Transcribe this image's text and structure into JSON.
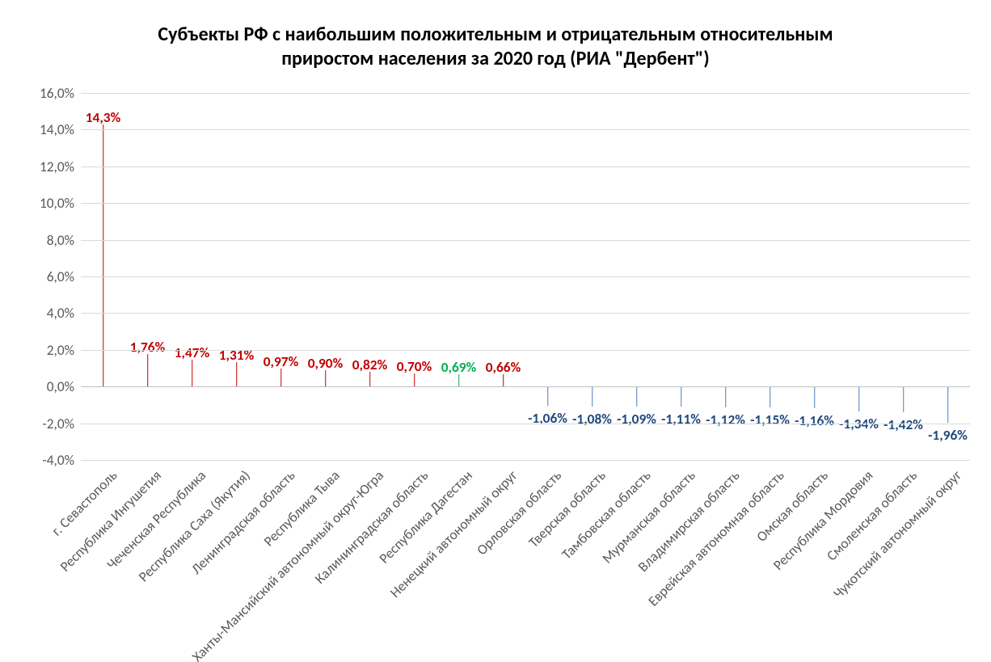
{
  "chart": {
    "type": "bar",
    "title": "Субъекты РФ с наибольшим положительным и отрицательным относительным\nприростом населения за 2020 год (РИА \"Дербент\")",
    "title_fontsize_pt": 18,
    "title_color": "#000000",
    "background_color": "#ffffff",
    "grid_color": "#d9d9d9",
    "axis_label_color": "#595959",
    "y_axis": {
      "min": -4.0,
      "max": 16.0,
      "tick_step": 2.0,
      "ticks": [
        -4.0,
        -2.0,
        0.0,
        2.0,
        4.0,
        6.0,
        8.0,
        10.0,
        12.0,
        14.0,
        16.0
      ],
      "tick_format_suffix": "%",
      "tick_decimal_places": 1,
      "tick_decimal_separator": ",",
      "tick_fontsize_pt": 13
    },
    "bar_width_ratio": 0.55,
    "data_label_fontsize_pt": 13,
    "x_label_fontsize_pt": 13,
    "x_label_rotation_deg": -45,
    "colors": {
      "positive_highlight": "#c00000",
      "positive_special": "#00b050",
      "negative": "#4a7ebb"
    },
    "data_label_colors": {
      "positive": "#c00000",
      "special": "#00b050",
      "negative": "#1f497d"
    },
    "series": [
      {
        "label": "г. Севастополь",
        "value": 14.3,
        "display": "14,3%",
        "color": "#c00000",
        "label_color": "#c00000"
      },
      {
        "label": "Республика Ингушетия",
        "value": 1.76,
        "display": "1,76%",
        "color": "#c00000",
        "label_color": "#c00000"
      },
      {
        "label": "Чеченская Республика",
        "value": 1.47,
        "display": "1,47%",
        "color": "#c00000",
        "label_color": "#c00000"
      },
      {
        "label": "Республика Саха (Якутия)",
        "value": 1.31,
        "display": "1,31%",
        "color": "#c00000",
        "label_color": "#c00000"
      },
      {
        "label": "Ленинградская область",
        "value": 0.97,
        "display": "0,97%",
        "color": "#c00000",
        "label_color": "#c00000"
      },
      {
        "label": "Республика Тыва",
        "value": 0.9,
        "display": "0,90%",
        "color": "#c00000",
        "label_color": "#c00000"
      },
      {
        "label": "Ханты-Мансийский автономный округ-Югра",
        "value": 0.82,
        "display": "0,82%",
        "color": "#c00000",
        "label_color": "#c00000"
      },
      {
        "label": "Калининградская область",
        "value": 0.7,
        "display": "0,70%",
        "color": "#c00000",
        "label_color": "#c00000"
      },
      {
        "label": "Республика Дагестан",
        "value": 0.69,
        "display": "0,69%",
        "color": "#00b050",
        "label_color": "#00b050"
      },
      {
        "label": "Ненецкий автономный округ",
        "value": 0.66,
        "display": "0,66%",
        "color": "#c00000",
        "label_color": "#c00000"
      },
      {
        "label": "Орловская область",
        "value": -1.06,
        "display": "-1,06%",
        "color": "#4a7ebb",
        "label_color": "#1f497d"
      },
      {
        "label": "Тверская область",
        "value": -1.08,
        "display": "-1,08%",
        "color": "#4a7ebb",
        "label_color": "#1f497d"
      },
      {
        "label": "Тамбовская область",
        "value": -1.09,
        "display": "-1,09%",
        "color": "#4a7ebb",
        "label_color": "#1f497d"
      },
      {
        "label": "Мурманская область",
        "value": -1.11,
        "display": "-1,11%",
        "color": "#4a7ebb",
        "label_color": "#1f497d"
      },
      {
        "label": "Владимирская область",
        "value": -1.12,
        "display": "-1,12%",
        "color": "#4a7ebb",
        "label_color": "#1f497d"
      },
      {
        "label": "Еврейская автономная область",
        "value": -1.15,
        "display": "-1,15%",
        "color": "#4a7ebb",
        "label_color": "#1f497d"
      },
      {
        "label": "Омская область",
        "value": -1.16,
        "display": "-1,16%",
        "color": "#4a7ebb",
        "label_color": "#1f497d"
      },
      {
        "label": "Республика Мордовия",
        "value": -1.34,
        "display": "-1,34%",
        "color": "#4a7ebb",
        "label_color": "#1f497d"
      },
      {
        "label": "Смоленская область",
        "value": -1.42,
        "display": "-1,42%",
        "color": "#4a7ebb",
        "label_color": "#1f497d"
      },
      {
        "label": "Чукотский автономный округ",
        "value": -1.96,
        "display": "-1,96%",
        "color": "#4a7ebb",
        "label_color": "#1f497d"
      }
    ]
  }
}
